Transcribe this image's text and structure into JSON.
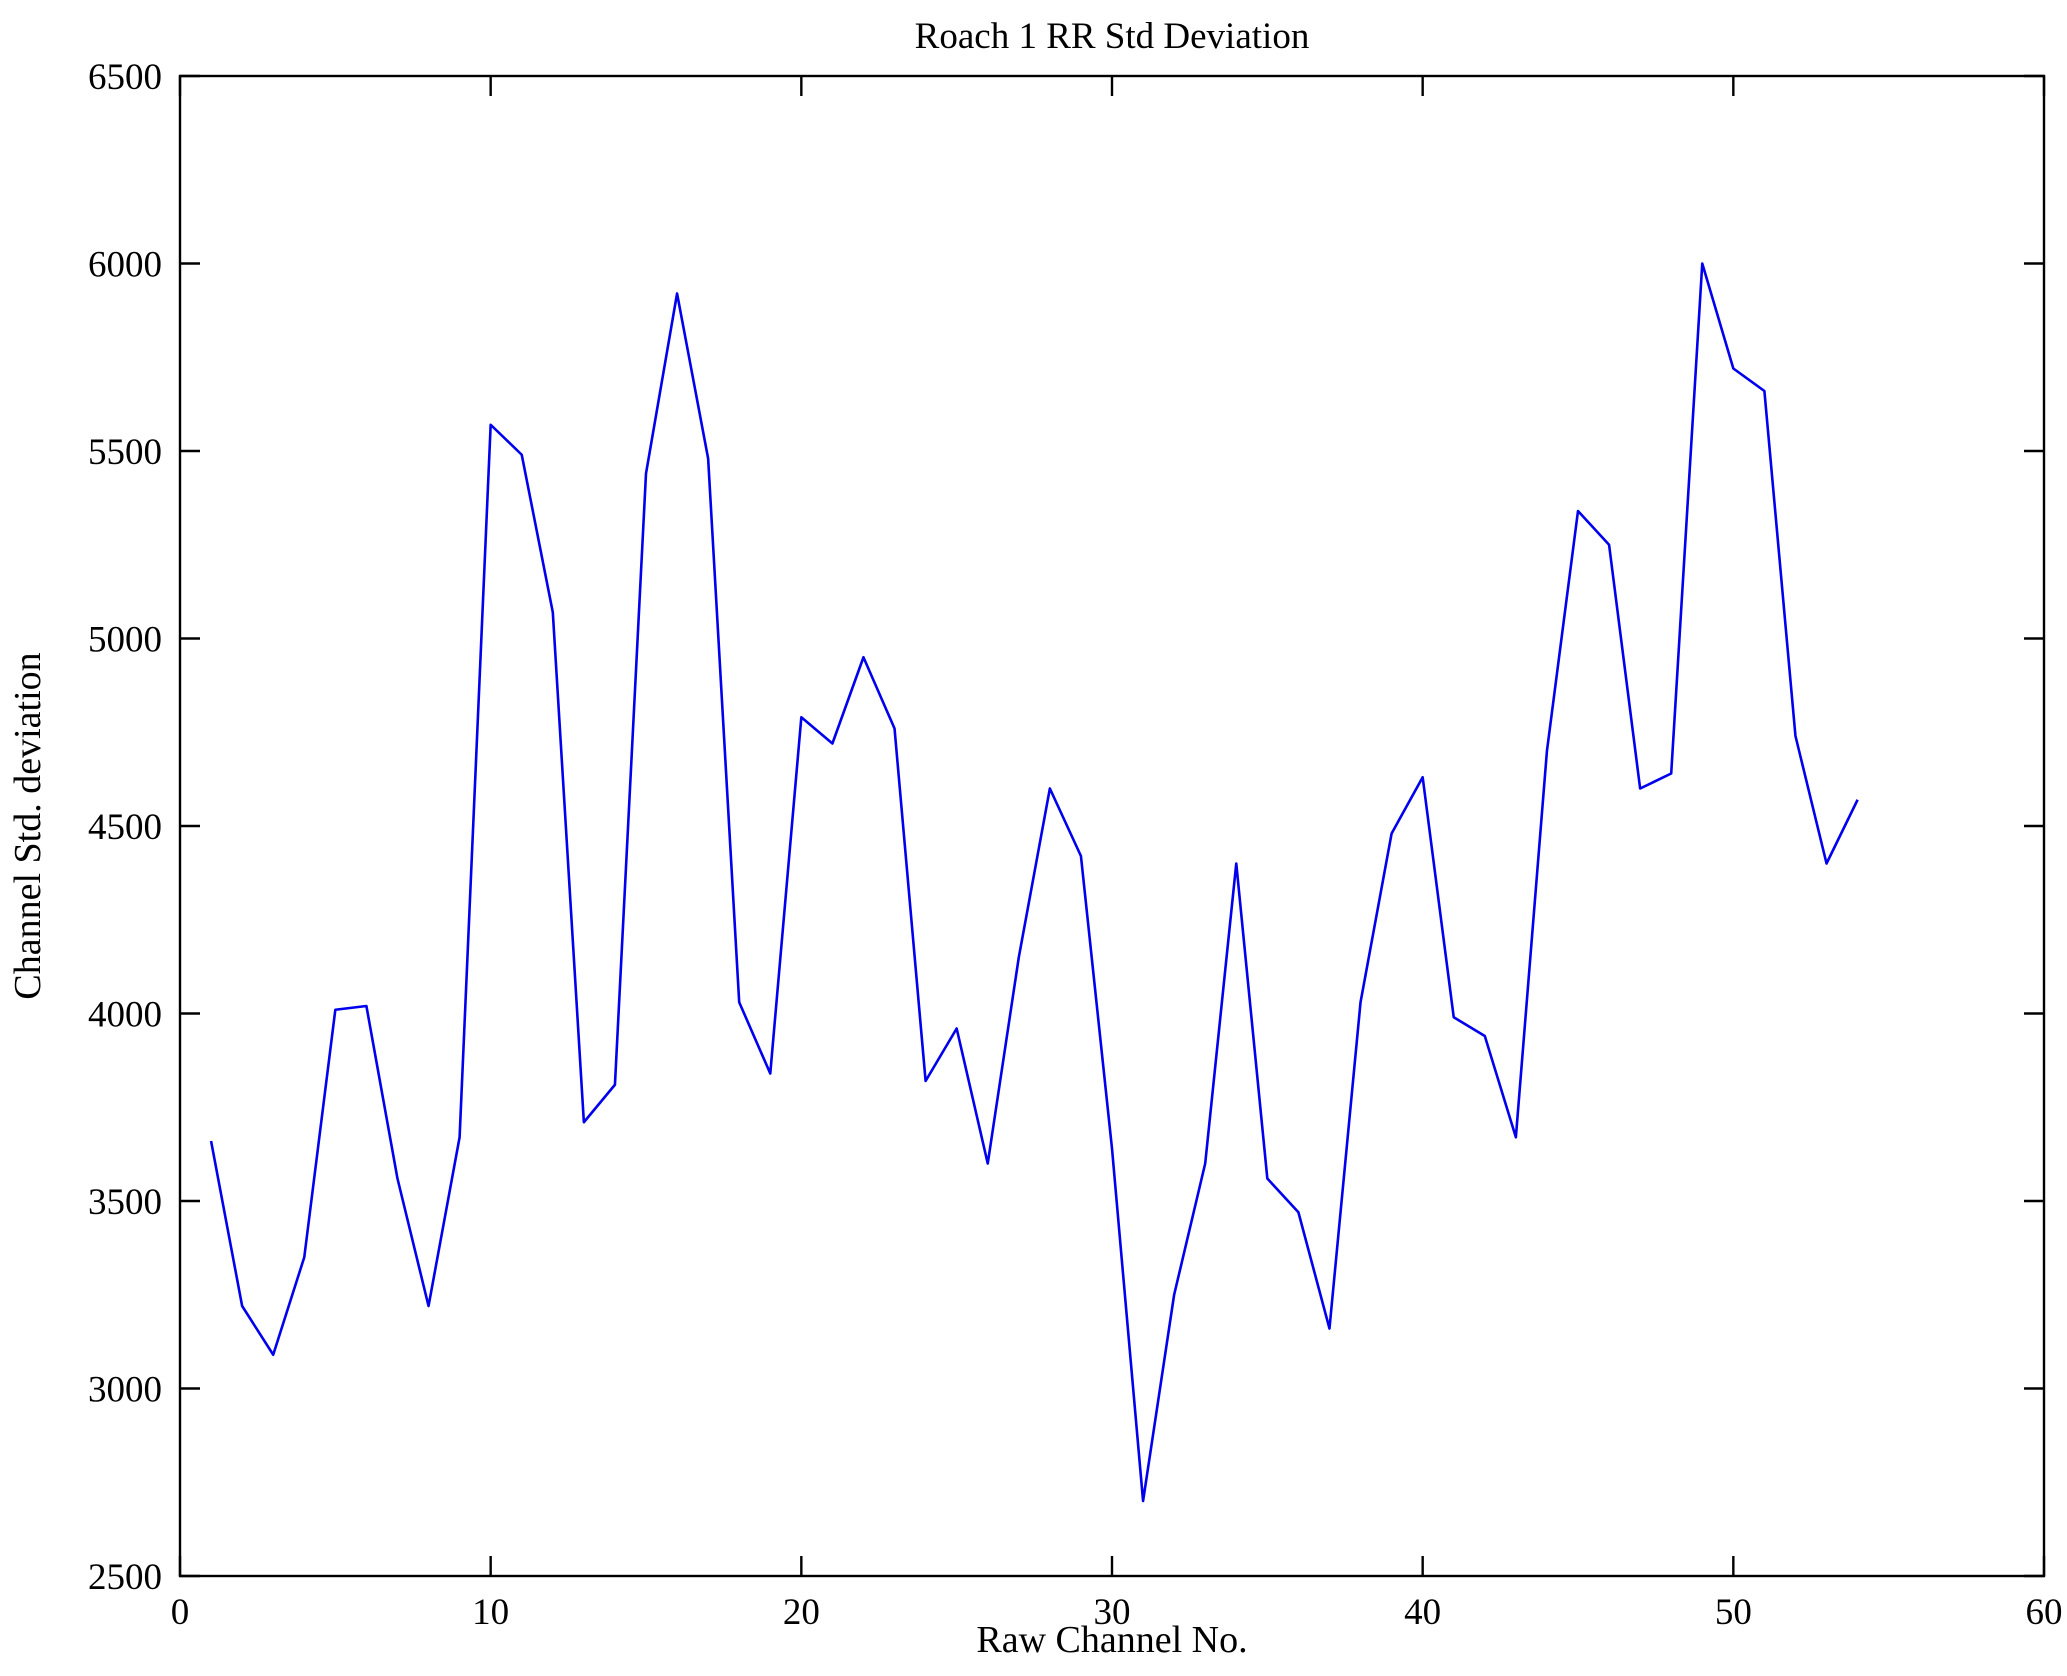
{
  "chart_data": {
    "type": "line",
    "title": "Roach 1 RR Std Deviation",
    "xlabel": "Raw Channel No.",
    "ylabel": "Channel Std. deviation",
    "xlim": [
      0,
      60
    ],
    "ylim": [
      2500,
      6500
    ],
    "x_ticks": [
      0,
      10,
      20,
      30,
      40,
      50,
      60
    ],
    "y_ticks": [
      2500,
      3000,
      3500,
      4000,
      4500,
      5000,
      5500,
      6000,
      6500
    ],
    "grid": false,
    "legend": "none",
    "line_color": "#0000ee",
    "axis_color": "#000000",
    "x": [
      1,
      2,
      3,
      4,
      5,
      6,
      7,
      8,
      9,
      10,
      11,
      12,
      13,
      14,
      15,
      16,
      17,
      18,
      19,
      20,
      21,
      22,
      23,
      24,
      25,
      26,
      27,
      28,
      29,
      30,
      31,
      32,
      33,
      34,
      35,
      36,
      37,
      38,
      39,
      40,
      41,
      42,
      43,
      44,
      45,
      46,
      47,
      48,
      49,
      50,
      51,
      52,
      53,
      54
    ],
    "y": [
      3660,
      3220,
      3090,
      3350,
      4010,
      4020,
      3560,
      3220,
      3670,
      5570,
      5490,
      5070,
      3710,
      3810,
      5440,
      5920,
      5480,
      4030,
      3840,
      4790,
      4720,
      4950,
      4760,
      3820,
      3960,
      3600,
      4150,
      4600,
      4420,
      3640,
      2700,
      3250,
      3600,
      4400,
      3560,
      3470,
      3160,
      4030,
      4480,
      4630,
      3990,
      3940,
      3670,
      4700,
      5340,
      5250,
      4600,
      4640,
      6000,
      5720,
      5660,
      4740,
      4400,
      4570
    ]
  }
}
